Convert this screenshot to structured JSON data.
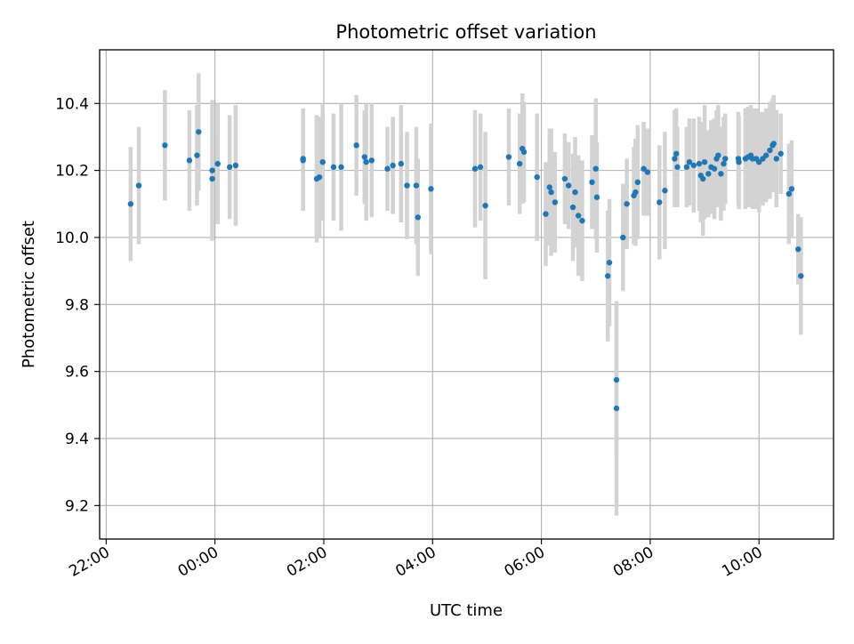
{
  "chart_data": {
    "type": "scatter",
    "title": "Photometric offset variation",
    "xlabel": "UTC time",
    "ylabel": "Photometric offset",
    "x_unit": "hours relative to 00:00 (negative = previous day)",
    "xlim": [
      -2.12,
      11.37
    ],
    "ylim": [
      9.1,
      10.56
    ],
    "grid": true,
    "x_ticks": [
      {
        "value": -2,
        "label": "22:00"
      },
      {
        "value": 0,
        "label": "00:00"
      },
      {
        "value": 2,
        "label": "02:00"
      },
      {
        "value": 4,
        "label": "04:00"
      },
      {
        "value": 6,
        "label": "06:00"
      },
      {
        "value": 8,
        "label": "08:00"
      },
      {
        "value": 10,
        "label": "10:00"
      }
    ],
    "y_ticks": [
      {
        "value": 9.2,
        "label": "9.2"
      },
      {
        "value": 9.4,
        "label": "9.4"
      },
      {
        "value": 9.6,
        "label": "9.6"
      },
      {
        "value": 9.8,
        "label": "9.8"
      },
      {
        "value": 10.0,
        "label": "10.0"
      },
      {
        "value": 10.2,
        "label": "10.2"
      },
      {
        "value": 10.4,
        "label": "10.4"
      }
    ],
    "marker_color": "#1f77b4",
    "errorbar_color": "#d3d3d3",
    "points": [
      [
        -1.55,
        10.1,
        0.17
      ],
      [
        -1.4,
        10.155,
        0.175
      ],
      [
        -0.92,
        10.275,
        0.165
      ],
      [
        -0.47,
        10.23,
        0.15
      ],
      [
        -0.33,
        10.245,
        0.15
      ],
      [
        -0.3,
        10.315,
        0.175
      ],
      [
        -0.05,
        10.175,
        0.145
      ],
      [
        -0.05,
        10.2,
        0.21
      ],
      [
        0.05,
        10.22,
        0.18
      ],
      [
        0.27,
        10.21,
        0.155
      ],
      [
        0.38,
        10.215,
        0.18
      ],
      [
        1.62,
        10.235,
        0.15
      ],
      [
        1.62,
        10.23,
        0.15
      ],
      [
        1.87,
        10.175,
        0.19
      ],
      [
        1.92,
        10.18,
        0.18
      ],
      [
        1.98,
        10.225,
        0.175
      ],
      [
        2.18,
        10.21,
        0.16
      ],
      [
        2.32,
        10.21,
        0.19
      ],
      [
        2.6,
        10.275,
        0.15
      ],
      [
        2.75,
        10.24,
        0.14
      ],
      [
        2.78,
        10.225,
        0.175
      ],
      [
        2.88,
        10.23,
        0.17
      ],
      [
        3.17,
        10.205,
        0.125
      ],
      [
        3.27,
        10.215,
        0.145
      ],
      [
        3.42,
        10.22,
        0.175
      ],
      [
        3.53,
        10.155,
        0.16
      ],
      [
        3.7,
        10.155,
        0.175
      ],
      [
        3.73,
        10.06,
        0.175
      ],
      [
        3.97,
        10.145,
        0.195
      ],
      [
        4.78,
        10.205,
        0.175
      ],
      [
        4.88,
        10.21,
        0.16
      ],
      [
        4.97,
        10.095,
        0.22
      ],
      [
        5.4,
        10.24,
        0.145
      ],
      [
        5.6,
        10.22,
        0.15
      ],
      [
        5.65,
        10.265,
        0.165
      ],
      [
        5.68,
        10.255,
        0.15
      ],
      [
        5.92,
        10.18,
        0.19
      ],
      [
        6.08,
        10.07,
        0.155
      ],
      [
        6.15,
        10.15,
        0.175
      ],
      [
        6.18,
        10.135,
        0.19
      ],
      [
        6.25,
        10.105,
        0.15
      ],
      [
        6.43,
        10.175,
        0.135
      ],
      [
        6.5,
        10.155,
        0.13
      ],
      [
        6.58,
        10.09,
        0.16
      ],
      [
        6.62,
        10.135,
        0.165
      ],
      [
        6.68,
        10.065,
        0.18
      ],
      [
        6.75,
        10.05,
        0.18
      ],
      [
        6.93,
        10.165,
        0.14
      ],
      [
        7.0,
        10.205,
        0.21
      ],
      [
        7.02,
        10.12,
        0.165
      ],
      [
        7.22,
        9.885,
        0.195
      ],
      [
        7.25,
        9.925,
        0.19
      ],
      [
        7.38,
        9.575,
        0.225
      ],
      [
        7.38,
        9.49,
        0.32
      ],
      [
        7.5,
        10.0,
        0.16
      ],
      [
        7.57,
        10.1,
        0.135
      ],
      [
        7.7,
        10.125,
        0.145
      ],
      [
        7.73,
        10.135,
        0.16
      ],
      [
        7.77,
        10.165,
        0.17
      ],
      [
        7.88,
        10.205,
        0.14
      ],
      [
        7.95,
        10.195,
        0.13
      ],
      [
        8.17,
        10.105,
        0.17
      ],
      [
        8.27,
        10.14,
        0.175
      ],
      [
        8.45,
        10.235,
        0.145
      ],
      [
        8.48,
        10.25,
        0.135
      ],
      [
        8.5,
        10.21,
        0.12
      ],
      [
        8.67,
        10.21,
        0.12
      ],
      [
        8.72,
        10.225,
        0.13
      ],
      [
        8.8,
        10.215,
        0.14
      ],
      [
        8.9,
        10.22,
        0.14
      ],
      [
        8.93,
        10.185,
        0.14
      ],
      [
        8.97,
        10.175,
        0.17
      ],
      [
        9.0,
        10.225,
        0.17
      ],
      [
        9.07,
        10.19,
        0.13
      ],
      [
        9.12,
        10.21,
        0.14
      ],
      [
        9.18,
        10.205,
        0.15
      ],
      [
        9.22,
        10.235,
        0.145
      ],
      [
        9.25,
        10.245,
        0.15
      ],
      [
        9.3,
        10.19,
        0.14
      ],
      [
        9.35,
        10.22,
        0.14
      ],
      [
        9.38,
        10.235,
        0.135
      ],
      [
        9.62,
        10.235,
        0.14
      ],
      [
        9.63,
        10.225,
        0.14
      ],
      [
        9.75,
        10.235,
        0.15
      ],
      [
        9.8,
        10.24,
        0.15
      ],
      [
        9.85,
        10.245,
        0.15
      ],
      [
        9.88,
        10.235,
        0.15
      ],
      [
        9.95,
        10.235,
        0.15
      ],
      [
        10.0,
        10.225,
        0.15
      ],
      [
        10.07,
        10.235,
        0.14
      ],
      [
        10.13,
        10.245,
        0.14
      ],
      [
        10.2,
        10.26,
        0.145
      ],
      [
        10.25,
        10.275,
        0.14
      ],
      [
        10.27,
        10.28,
        0.145
      ],
      [
        10.32,
        10.235,
        0.145
      ],
      [
        10.4,
        10.25,
        0.12
      ],
      [
        10.55,
        10.13,
        0.15
      ],
      [
        10.6,
        10.145,
        0.145
      ],
      [
        10.72,
        9.965,
        0.105
      ],
      [
        10.77,
        9.885,
        0.175
      ]
    ]
  }
}
